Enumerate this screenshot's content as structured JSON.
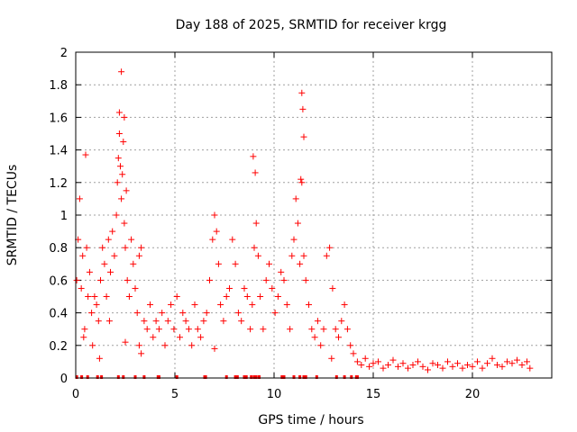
{
  "chart_data": {
    "type": "scatter",
    "title": "Day 188 of 2025, SRMTID for receiver krgg",
    "xlabel": "GPS time / hours",
    "ylabel": "SRMTID / TECUs",
    "xlim": [
      0,
      24
    ],
    "ylim": [
      0,
      2
    ],
    "xticks": [
      0,
      5,
      10,
      15,
      20
    ],
    "yticks": [
      0,
      0.2,
      0.4,
      0.6,
      0.8,
      1,
      1.2,
      1.4,
      1.6,
      1.8,
      2
    ],
    "grid": true,
    "marker": "+",
    "color": "#ff0000",
    "series": [
      {
        "name": "SRMTID",
        "x": [
          0.05,
          0.12,
          0.2,
          0.28,
          0.35,
          0.45,
          0.55,
          0.62,
          0.7,
          0.8,
          0.85,
          0.95,
          1.05,
          1.15,
          1.25,
          1.35,
          1.45,
          1.55,
          1.65,
          1.75,
          1.85,
          1.95,
          2.05,
          2.1,
          2.15,
          2.2,
          2.25,
          2.3,
          2.35,
          2.4,
          2.45,
          2.5,
          2.55,
          2.6,
          2.7,
          2.8,
          2.9,
          3.0,
          3.1,
          3.2,
          3.3,
          3.45,
          3.6,
          3.75,
          3.9,
          4.05,
          4.2,
          4.35,
          4.5,
          4.65,
          4.8,
          4.95,
          5.1,
          5.25,
          5.4,
          5.55,
          5.7,
          5.85,
          6.0,
          6.15,
          6.3,
          6.45,
          6.6,
          6.75,
          6.9,
          7.0,
          7.1,
          7.2,
          7.3,
          7.45,
          7.6,
          7.75,
          7.9,
          8.05,
          8.2,
          8.35,
          8.5,
          8.65,
          8.8,
          8.9,
          9.0,
          9.1,
          9.2,
          9.3,
          9.45,
          9.6,
          9.75,
          9.9,
          10.05,
          10.2,
          10.35,
          10.5,
          10.65,
          10.8,
          10.9,
          11.0,
          11.1,
          11.2,
          11.3,
          11.4,
          11.5,
          11.6,
          11.75,
          11.9,
          12.05,
          12.2,
          12.35,
          12.5,
          12.65,
          12.8,
          12.95,
          13.1,
          13.25,
          13.4,
          13.55,
          13.7,
          13.85,
          14.0,
          14.2,
          14.4,
          14.6,
          14.8,
          15.0,
          15.25,
          15.5,
          15.75,
          16.0,
          16.25,
          16.5,
          16.75,
          17.0,
          17.25,
          17.5,
          17.75,
          18.0,
          18.25,
          18.5,
          18.75,
          19.0,
          19.25,
          19.5,
          19.75,
          20.0,
          20.25,
          20.5,
          20.75,
          21.0,
          21.25,
          21.5,
          21.75,
          22.0,
          22.25,
          22.5,
          22.75,
          22.9,
          0.5,
          1.2,
          2.3,
          2.45,
          2.2,
          8.95,
          9.05,
          11.4,
          11.45,
          11.5,
          11.35,
          0.4,
          2.5,
          7.0,
          12.9,
          3.3,
          3.2,
          1.7
        ],
        "y": [
          0.6,
          0.85,
          1.1,
          0.55,
          0.75,
          0.3,
          0.8,
          0.5,
          0.65,
          0.4,
          0.2,
          0.5,
          0.45,
          0.35,
          0.6,
          0.8,
          0.7,
          0.5,
          0.85,
          0.65,
          0.9,
          0.75,
          1.0,
          1.2,
          1.35,
          1.5,
          1.3,
          1.1,
          1.25,
          1.45,
          0.95,
          0.8,
          1.15,
          0.6,
          0.5,
          0.85,
          0.7,
          0.55,
          0.4,
          0.75,
          0.8,
          0.35,
          0.3,
          0.45,
          0.25,
          0.35,
          0.3,
          0.4,
          0.2,
          0.35,
          0.45,
          0.3,
          0.5,
          0.25,
          0.4,
          0.35,
          0.3,
          0.2,
          0.45,
          0.3,
          0.25,
          0.35,
          0.4,
          0.6,
          0.85,
          1.0,
          0.9,
          0.7,
          0.45,
          0.35,
          0.5,
          0.55,
          0.85,
          0.7,
          0.4,
          0.35,
          0.55,
          0.5,
          0.3,
          0.45,
          0.8,
          0.95,
          0.75,
          0.5,
          0.3,
          0.6,
          0.7,
          0.55,
          0.4,
          0.5,
          0.65,
          0.6,
          0.45,
          0.3,
          0.75,
          0.85,
          1.1,
          0.95,
          0.7,
          1.2,
          0.75,
          0.6,
          0.45,
          0.3,
          0.25,
          0.35,
          0.2,
          0.3,
          0.75,
          0.8,
          0.55,
          0.3,
          0.25,
          0.35,
          0.45,
          0.3,
          0.2,
          0.15,
          0.1,
          0.08,
          0.12,
          0.07,
          0.09,
          0.1,
          0.06,
          0.08,
          0.11,
          0.07,
          0.09,
          0.06,
          0.08,
          0.1,
          0.07,
          0.05,
          0.09,
          0.08,
          0.06,
          0.1,
          0.07,
          0.09,
          0.06,
          0.08,
          0.07,
          0.1,
          0.06,
          0.09,
          0.12,
          0.08,
          0.07,
          0.1,
          0.09,
          0.11,
          0.08,
          0.1,
          0.06,
          1.37,
          0.12,
          1.88,
          1.6,
          1.63,
          1.36,
          1.26,
          1.75,
          1.65,
          1.48,
          1.22,
          0.25,
          0.22,
          0.18,
          0.12,
          0.15,
          0.2,
          0.35
        ]
      }
    ],
    "baseline_x": [
      0.05,
      0.3,
      0.6,
      1.1,
      1.3,
      2.15,
      2.4,
      3.0,
      3.45,
      4.15,
      4.2,
      5.1,
      6.5,
      6.55,
      7.6,
      8.05,
      8.15,
      8.5,
      8.6,
      8.85,
      9.0,
      9.1,
      9.25,
      10.4,
      10.5,
      11.0,
      11.3,
      11.5,
      11.6,
      12.15,
      13.15,
      13.55,
      13.9,
      14.15,
      14.2
    ]
  }
}
